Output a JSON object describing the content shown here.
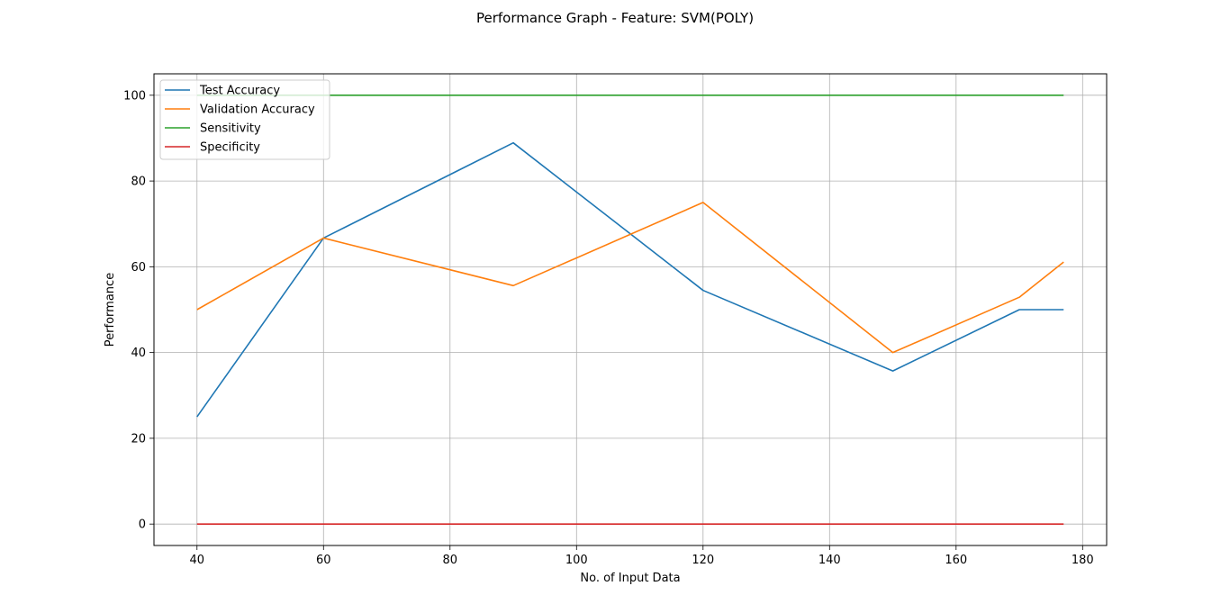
{
  "chart_data": {
    "type": "line",
    "title": "Performance Graph - Feature: SVM(POLY)",
    "xlabel": "No. of Input Data",
    "ylabel": "Performance",
    "xlim": [
      33.2,
      183.8
    ],
    "ylim": [
      -5,
      105
    ],
    "xticks": [
      40,
      60,
      80,
      100,
      120,
      140,
      160,
      180
    ],
    "yticks": [
      0,
      20,
      40,
      60,
      80,
      100
    ],
    "grid": true,
    "legend_position": "upper-left",
    "x": [
      40,
      60,
      90,
      120,
      150,
      170,
      177
    ],
    "series": [
      {
        "name": "Test Accuracy",
        "color": "#1f77b4",
        "values": [
          25.0,
          66.7,
          88.9,
          54.5,
          35.7,
          50.0,
          50.0
        ]
      },
      {
        "name": "Validation Accuracy",
        "color": "#ff7f0e",
        "values": [
          50.0,
          66.7,
          55.6,
          75.0,
          40.0,
          52.9,
          61.1
        ]
      },
      {
        "name": "Sensitivity",
        "color": "#2ca02c",
        "values": [
          100,
          100,
          100,
          100,
          100,
          100,
          100
        ]
      },
      {
        "name": "Specificity",
        "color": "#d62728",
        "values": [
          0,
          0,
          0,
          0,
          0,
          0,
          0
        ]
      }
    ]
  }
}
